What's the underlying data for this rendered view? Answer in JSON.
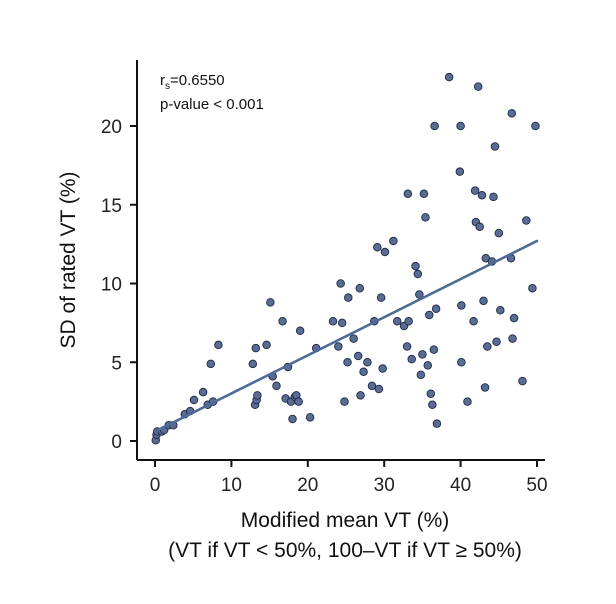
{
  "chart_data": {
    "type": "scatter",
    "xlabel": "Modified mean VT (%)",
    "xlabel_line2": "(VT if VT < 50%, 100–VT if VT ≥ 50%)",
    "ylabel": "SD of rated VT (%)",
    "xlim": [
      0,
      51
    ],
    "ylim": [
      0,
      23.5
    ],
    "xticks": [
      0,
      10,
      20,
      30,
      40,
      50
    ],
    "yticks": [
      0,
      5,
      10,
      15,
      20
    ],
    "xtick_labels": [
      "0",
      "10",
      "20",
      "30",
      "40",
      "50"
    ],
    "ytick_labels": [
      "0",
      "5",
      "10",
      "15",
      "20"
    ],
    "grid": false,
    "annotation": {
      "rs_prefix": "r",
      "rs_subscript": "s",
      "rs_value": "=0.6550",
      "pvalue": "p-value < 0.001"
    },
    "trendline": {
      "x": [
        0,
        50
      ],
      "y": [
        0.6,
        12.7
      ],
      "color": "#4e6a97"
    },
    "marker_color": "#5a6b94",
    "points": [
      [
        0.1,
        0.05
      ],
      [
        0.2,
        0.4
      ],
      [
        0.3,
        0.6
      ],
      [
        0.9,
        0.6
      ],
      [
        1.2,
        0.7
      ],
      [
        1.8,
        1.0
      ],
      [
        2.4,
        1.0
      ],
      [
        3.9,
        1.7
      ],
      [
        4.6,
        1.9
      ],
      [
        5.1,
        2.6
      ],
      [
        6.3,
        3.1
      ],
      [
        6.9,
        2.3
      ],
      [
        7.3,
        4.9
      ],
      [
        7.6,
        2.5
      ],
      [
        8.3,
        6.1
      ],
      [
        12.8,
        4.9
      ],
      [
        13.1,
        2.3
      ],
      [
        13.3,
        2.6
      ],
      [
        13.2,
        5.9
      ],
      [
        13.4,
        2.9
      ],
      [
        14.6,
        6.1
      ],
      [
        15.1,
        8.8
      ],
      [
        15.4,
        4.1
      ],
      [
        15.9,
        3.5
      ],
      [
        16.7,
        7.6
      ],
      [
        17.1,
        2.7
      ],
      [
        17.4,
        4.7
      ],
      [
        17.8,
        2.5
      ],
      [
        18.0,
        1.4
      ],
      [
        18.3,
        2.8
      ],
      [
        18.5,
        2.9
      ],
      [
        18.8,
        2.5
      ],
      [
        19.0,
        7.0
      ],
      [
        20.3,
        1.5
      ],
      [
        21.1,
        5.9
      ],
      [
        23.3,
        7.6
      ],
      [
        24.0,
        6.0
      ],
      [
        24.3,
        10.0
      ],
      [
        24.5,
        7.5
      ],
      [
        24.8,
        2.5
      ],
      [
        25.2,
        5.0
      ],
      [
        25.3,
        9.1
      ],
      [
        26.0,
        6.5
      ],
      [
        26.6,
        5.4
      ],
      [
        26.8,
        9.7
      ],
      [
        26.9,
        2.9
      ],
      [
        27.3,
        4.4
      ],
      [
        27.8,
        5.0
      ],
      [
        28.4,
        3.5
      ],
      [
        28.7,
        7.6
      ],
      [
        29.1,
        12.3
      ],
      [
        29.3,
        3.3
      ],
      [
        29.6,
        9.1
      ],
      [
        29.8,
        4.6
      ],
      [
        30.1,
        12.0
      ],
      [
        31.2,
        12.7
      ],
      [
        31.7,
        7.6
      ],
      [
        32.6,
        7.3
      ],
      [
        33.0,
        6.0
      ],
      [
        33.1,
        15.7
      ],
      [
        33.2,
        7.6
      ],
      [
        33.6,
        5.2
      ],
      [
        34.1,
        11.1
      ],
      [
        34.4,
        10.6
      ],
      [
        34.6,
        9.3
      ],
      [
        34.8,
        4.2
      ],
      [
        35.0,
        5.5
      ],
      [
        35.2,
        15.7
      ],
      [
        35.4,
        14.2
      ],
      [
        35.7,
        4.8
      ],
      [
        35.9,
        8.0
      ],
      [
        36.1,
        3.0
      ],
      [
        36.3,
        2.3
      ],
      [
        36.5,
        5.8
      ],
      [
        36.6,
        20.0
      ],
      [
        36.8,
        8.4
      ],
      [
        36.9,
        1.1
      ],
      [
        38.5,
        23.1
      ],
      [
        39.9,
        17.1
      ],
      [
        40.0,
        20.0
      ],
      [
        40.1,
        8.6
      ],
      [
        40.1,
        5.0
      ],
      [
        40.9,
        2.5
      ],
      [
        41.7,
        7.6
      ],
      [
        41.9,
        15.9
      ],
      [
        42.0,
        13.9
      ],
      [
        42.3,
        22.5
      ],
      [
        42.5,
        13.6
      ],
      [
        42.8,
        15.6
      ],
      [
        43.0,
        8.9
      ],
      [
        43.2,
        3.4
      ],
      [
        43.3,
        11.6
      ],
      [
        43.5,
        6.0
      ],
      [
        44.1,
        11.4
      ],
      [
        44.3,
        15.5
      ],
      [
        44.5,
        18.7
      ],
      [
        44.7,
        6.3
      ],
      [
        45.0,
        13.2
      ],
      [
        45.2,
        8.3
      ],
      [
        46.6,
        11.6
      ],
      [
        46.7,
        20.8
      ],
      [
        46.8,
        6.5
      ],
      [
        47.0,
        7.8
      ],
      [
        48.1,
        3.8
      ],
      [
        48.6,
        14.0
      ],
      [
        49.4,
        9.7
      ],
      [
        49.8,
        20.0
      ]
    ]
  }
}
